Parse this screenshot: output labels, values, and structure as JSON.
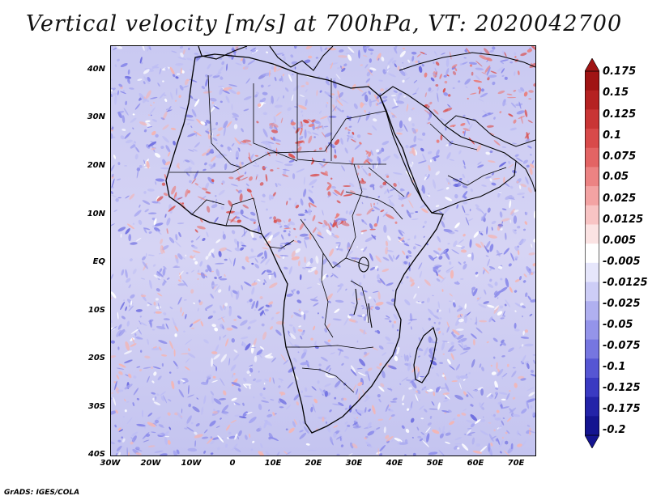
{
  "title": "Vertical velocity [m/s] at 700hPa, VT: 2020042700",
  "credit": "GrADS: IGES/COLA",
  "map": {
    "lat_labels": [
      "40N",
      "30N",
      "20N",
      "10N",
      "EQ",
      "10S",
      "20S",
      "30S",
      "40S"
    ],
    "lon_labels": [
      "30W",
      "20W",
      "10W",
      "0",
      "10E",
      "20E",
      "30E",
      "40E",
      "50E",
      "60E",
      "70E"
    ]
  },
  "colorbar": {
    "labels": [
      "0.175",
      "0.15",
      "0.125",
      "0.1",
      "0.075",
      "0.05",
      "0.025",
      "0.0125",
      "0.005",
      "-0.005",
      "-0.0125",
      "-0.025",
      "-0.05",
      "-0.075",
      "-0.1",
      "-0.125",
      "-0.175",
      "-0.2"
    ],
    "colors": [
      "#a01414",
      "#b52222",
      "#c93535",
      "#d84a4a",
      "#e36464",
      "#ec8383",
      "#f3a3a3",
      "#f8c4c4",
      "#fbe3e3",
      "#ffffff",
      "#e6e6fb",
      "#cdcdf6",
      "#b0b0f0",
      "#9494ea",
      "#7676e0",
      "#5656d3",
      "#3a3ac2",
      "#2323a8",
      "#141490"
    ]
  }
}
